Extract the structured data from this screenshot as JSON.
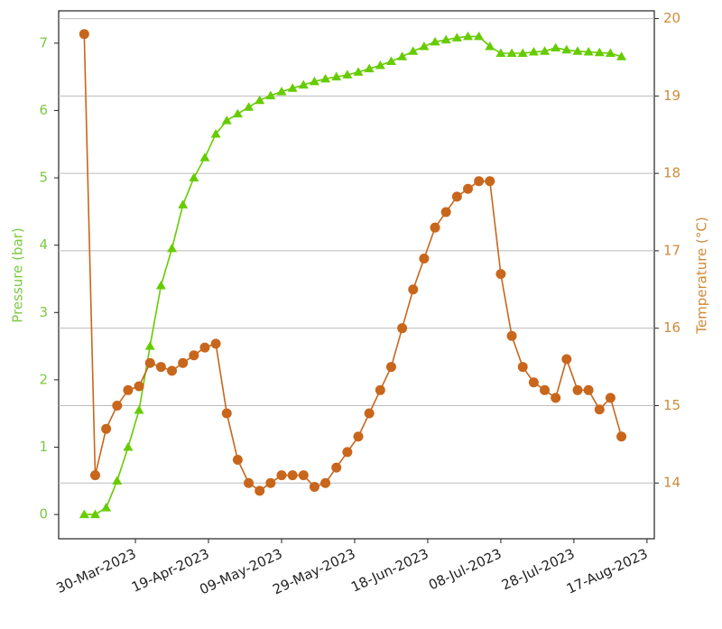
{
  "chart_data": {
    "type": "line",
    "x": [
      "2023-03-16",
      "2023-03-19",
      "2023-03-22",
      "2023-03-25",
      "2023-03-28",
      "2023-03-31",
      "2023-04-03",
      "2023-04-06",
      "2023-04-09",
      "2023-04-12",
      "2023-04-15",
      "2023-04-18",
      "2023-04-21",
      "2023-04-24",
      "2023-04-27",
      "2023-04-30",
      "2023-05-03",
      "2023-05-06",
      "2023-05-09",
      "2023-05-12",
      "2023-05-15",
      "2023-05-18",
      "2023-05-21",
      "2023-05-24",
      "2023-05-27",
      "2023-05-30",
      "2023-06-02",
      "2023-06-05",
      "2023-06-08",
      "2023-06-11",
      "2023-06-14",
      "2023-06-17",
      "2023-06-20",
      "2023-06-23",
      "2023-06-26",
      "2023-06-29",
      "2023-07-02",
      "2023-07-05",
      "2023-07-08",
      "2023-07-11",
      "2023-07-14",
      "2023-07-17",
      "2023-07-20",
      "2023-07-23",
      "2023-07-26",
      "2023-07-29",
      "2023-08-01",
      "2023-08-04",
      "2023-08-07",
      "2023-08-10"
    ],
    "series": [
      {
        "name": "Pressure",
        "color": "#66cc00",
        "marker": "triangle",
        "axis": "y",
        "values": [
          0,
          0,
          0.1,
          0.5,
          1.0,
          1.55,
          2.5,
          3.4,
          3.95,
          4.6,
          5.0,
          5.3,
          5.65,
          5.85,
          5.95,
          6.05,
          6.15,
          6.22,
          6.28,
          6.33,
          6.38,
          6.43,
          6.47,
          6.5,
          6.53,
          6.57,
          6.62,
          6.67,
          6.73,
          6.8,
          6.88,
          6.95,
          7.02,
          7.05,
          7.08,
          7.1,
          7.1,
          6.95,
          6.85,
          6.85,
          6.85,
          6.87,
          6.88,
          6.93,
          6.9,
          6.88,
          6.87,
          6.86,
          6.85,
          6.8
        ]
      },
      {
        "name": "Temperature",
        "color": "#c8661c",
        "marker": "circle",
        "axis": "y2",
        "values": [
          19.8,
          14.1,
          14.7,
          15.0,
          15.2,
          15.25,
          15.55,
          15.5,
          15.45,
          15.55,
          15.65,
          15.75,
          15.8,
          14.9,
          14.3,
          14.0,
          13.9,
          14.0,
          14.1,
          14.1,
          14.1,
          13.95,
          14.0,
          14.2,
          14.4,
          14.6,
          14.9,
          15.2,
          15.5,
          16.0,
          16.5,
          16.9,
          17.3,
          17.5,
          17.7,
          17.8,
          17.9,
          17.9,
          16.7,
          15.9,
          15.5,
          15.3,
          15.2,
          15.1,
          15.6,
          15.2,
          15.2,
          14.95,
          15.1,
          14.6
        ]
      }
    ],
    "ylabel": "Pressure (bar)",
    "y2label": "Temperature (°C)",
    "xlim": [
      "2023-03-09",
      "2023-08-19"
    ],
    "xticks": [
      {
        "value": "2023-03-30",
        "label": "30-Mar-2023"
      },
      {
        "value": "2023-04-19",
        "label": "19-Apr-2023"
      },
      {
        "value": "2023-05-09",
        "label": "09-May-2023"
      },
      {
        "value": "2023-05-29",
        "label": "29-May-2023"
      },
      {
        "value": "2023-06-18",
        "label": "18-Jun-2023"
      },
      {
        "value": "2023-07-08",
        "label": "08-Jul-2023"
      },
      {
        "value": "2023-07-28",
        "label": "28-Jul-2023"
      },
      {
        "value": "2023-08-17",
        "label": "17-Aug-2023"
      }
    ],
    "ylim": [
      -0.36,
      7.48
    ],
    "yticks": [
      0,
      1,
      2,
      3,
      4,
      5,
      6,
      7
    ],
    "ycolor": "#7ac943",
    "y2lim": [
      13.28,
      20.1
    ],
    "y2ticks": [
      14,
      15,
      16,
      17,
      18,
      19,
      20
    ],
    "y2color": "#d08a3a",
    "grid": "y2"
  }
}
